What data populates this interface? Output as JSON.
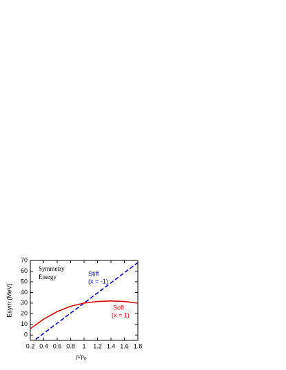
{
  "chart_data": {
    "type": "line",
    "y_label": "Esym (MeV)",
    "x_label": {
      "main": "ρ/ρ",
      "sub": "0"
    },
    "annotations": {
      "title_lines": [
        "Symmetry",
        "Energy"
      ],
      "stiff_note": "(x = -1)",
      "soft_note": "(x = 1)"
    },
    "xlim": [
      0.2,
      1.8
    ],
    "xticks": [
      0.2,
      0.4,
      0.6,
      0.8,
      1.0,
      1.2,
      1.4,
      1.6,
      1.8
    ],
    "ylim": [
      -5,
      70
    ],
    "yticks": [
      0,
      10,
      20,
      30,
      40,
      50,
      60,
      70
    ],
    "series": [
      {
        "name": "Stiff",
        "color": "#0000cc",
        "dashed": true,
        "x": [
          0.28,
          1.0,
          1.8
        ],
        "values": [
          -4,
          30,
          68
        ]
      },
      {
        "name": "Soft",
        "color": "#dd0000",
        "dashed": false,
        "x": [
          0.2,
          0.4,
          0.6,
          0.8,
          1.0,
          1.2,
          1.4,
          1.6,
          1.8
        ],
        "values": [
          6,
          15,
          22,
          27,
          30,
          31.5,
          32,
          31.5,
          30
        ]
      }
    ]
  }
}
